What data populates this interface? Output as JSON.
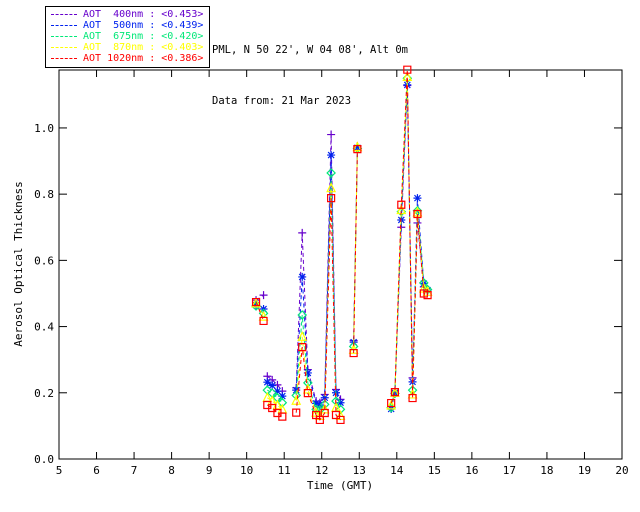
{
  "header": {
    "line1": "PML, N 50 22', W 04 08', Alt 0m",
    "line2": "Data from: 21 Mar 2023"
  },
  "chart_data": {
    "type": "line",
    "title": "",
    "xlabel": "Time (GMT)",
    "ylabel": "Aerosol Optical Thickness",
    "xlim": [
      5,
      20
    ],
    "ylim": [
      0,
      1.175
    ],
    "grid": false,
    "legend_position": "top-left-outside",
    "line_style": "dashed",
    "xticks": [
      5,
      6,
      7,
      8,
      9,
      10,
      11,
      12,
      13,
      14,
      15,
      16,
      17,
      18,
      19,
      20
    ],
    "yticks": [
      0.0,
      0.2,
      0.4,
      0.6,
      0.8,
      1.0
    ],
    "ytick_labels": [
      "0.0",
      "0.2",
      "0.4",
      "0.6",
      "0.8",
      "1.0"
    ],
    "series": [
      {
        "name": "AOT 400nm",
        "legend_label": "AOT  400nm : <0.453>",
        "mean": 0.453,
        "color": "#6600cc",
        "marker": "plus",
        "segments": [
          [
            [
              10.25,
              0.48
            ],
            [
              10.45,
              0.495
            ]
          ],
          [
            [
              10.55,
              0.25
            ],
            [
              10.68,
              0.239
            ],
            [
              10.82,
              0.224
            ],
            [
              10.95,
              0.205
            ]
          ],
          [
            [
              11.32,
              0.215
            ],
            [
              11.48,
              0.683
            ],
            [
              11.63,
              0.27
            ],
            [
              11.85,
              0.175
            ],
            [
              11.95,
              0.17
            ],
            [
              12.08,
              0.195
            ],
            [
              12.25,
              0.98
            ],
            [
              12.38,
              0.21
            ],
            [
              12.5,
              0.18
            ]
          ],
          [
            [
              12.85,
              0.358
            ],
            [
              12.95,
              0.945
            ]
          ],
          [
            [
              13.85,
              0.158
            ],
            [
              13.95,
              0.205
            ],
            [
              14.12,
              0.7
            ],
            [
              14.28,
              1.128
            ],
            [
              14.42,
              0.245
            ],
            [
              14.55,
              0.713
            ],
            [
              14.72,
              0.52
            ],
            [
              14.82,
              0.505
            ]
          ]
        ]
      },
      {
        "name": "AOT 500nm",
        "legend_label": "AOT  500nm : <0.439>",
        "mean": 0.439,
        "color": "#0022ee",
        "marker": "asterisk",
        "segments": [
          [
            [
              10.25,
              0.465
            ],
            [
              10.45,
              0.453
            ]
          ],
          [
            [
              10.55,
              0.232
            ],
            [
              10.68,
              0.222
            ],
            [
              10.82,
              0.205
            ],
            [
              10.95,
              0.19
            ]
          ],
          [
            [
              11.32,
              0.208
            ],
            [
              11.48,
              0.55
            ],
            [
              11.63,
              0.26
            ],
            [
              11.85,
              0.168
            ],
            [
              11.95,
              0.163
            ],
            [
              12.08,
              0.185
            ],
            [
              12.25,
              0.918
            ],
            [
              12.38,
              0.2
            ],
            [
              12.5,
              0.17
            ]
          ],
          [
            [
              12.85,
              0.353
            ],
            [
              12.95,
              0.94
            ]
          ],
          [
            [
              13.85,
              0.151
            ],
            [
              13.95,
              0.2
            ],
            [
              14.12,
              0.722
            ],
            [
              14.28,
              1.13
            ],
            [
              14.42,
              0.233
            ],
            [
              14.55,
              0.788
            ],
            [
              14.72,
              0.53
            ],
            [
              14.82,
              0.51
            ]
          ]
        ]
      },
      {
        "name": "AOT 675nm",
        "legend_label": "AOT  675nm : <0.420>",
        "mean": 0.42,
        "color": "#00e878",
        "marker": "diamond",
        "segments": [
          [
            [
              10.25,
              0.462
            ],
            [
              10.45,
              0.44
            ]
          ],
          [
            [
              10.55,
              0.208
            ],
            [
              10.68,
              0.199
            ],
            [
              10.82,
              0.185
            ],
            [
              10.95,
              0.17
            ]
          ],
          [
            [
              11.32,
              0.192
            ],
            [
              11.48,
              0.435
            ],
            [
              11.63,
              0.23
            ],
            [
              11.85,
              0.15
            ],
            [
              11.95,
              0.148
            ],
            [
              12.08,
              0.165
            ],
            [
              12.25,
              0.864
            ],
            [
              12.38,
              0.175
            ],
            [
              12.5,
              0.15
            ]
          ],
          [
            [
              12.85,
              0.34
            ],
            [
              12.95,
              0.938
            ]
          ],
          [
            [
              13.85,
              0.155
            ],
            [
              13.95,
              0.198
            ],
            [
              14.12,
              0.747
            ],
            [
              14.28,
              1.15
            ],
            [
              14.42,
              0.208
            ],
            [
              14.55,
              0.75
            ],
            [
              14.72,
              0.532
            ],
            [
              14.82,
              0.512
            ]
          ]
        ]
      },
      {
        "name": "AOT 870nm",
        "legend_label": "AOT  870nm : <0.403>",
        "mean": 0.403,
        "color": "#ffff00",
        "marker": "triangle",
        "segments": [
          [
            [
              10.25,
              0.47
            ],
            [
              10.45,
              0.43
            ]
          ],
          [
            [
              10.55,
              0.185
            ],
            [
              10.68,
              0.175
            ],
            [
              10.82,
              0.162
            ],
            [
              10.95,
              0.15
            ]
          ],
          [
            [
              11.32,
              0.176
            ],
            [
              11.48,
              0.369
            ],
            [
              11.63,
              0.21
            ],
            [
              11.85,
              0.14
            ],
            [
              11.95,
              0.13
            ],
            [
              12.08,
              0.15
            ],
            [
              12.25,
              0.818
            ],
            [
              12.38,
              0.155
            ],
            [
              12.5,
              0.13
            ]
          ],
          [
            [
              12.85,
              0.33
            ],
            [
              12.95,
              0.942
            ]
          ],
          [
            [
              13.85,
              0.162
            ],
            [
              13.95,
              0.2
            ],
            [
              14.12,
              0.752
            ],
            [
              14.28,
              1.154
            ],
            [
              14.42,
              0.195
            ],
            [
              14.55,
              0.745
            ],
            [
              14.72,
              0.515
            ],
            [
              14.82,
              0.505
            ]
          ]
        ]
      },
      {
        "name": "AOT 1020nm",
        "legend_label": "AOT 1020nm : <0.386>",
        "mean": 0.386,
        "color": "#ff0000",
        "marker": "square",
        "segments": [
          [
            [
              10.25,
              0.474
            ],
            [
              10.45,
              0.417
            ]
          ],
          [
            [
              10.55,
              0.163
            ],
            [
              10.68,
              0.154
            ],
            [
              10.82,
              0.139
            ],
            [
              10.95,
              0.128
            ]
          ],
          [
            [
              11.32,
              0.14
            ],
            [
              11.48,
              0.338
            ],
            [
              11.63,
              0.199
            ],
            [
              11.85,
              0.133
            ],
            [
              11.95,
              0.118
            ],
            [
              12.08,
              0.139
            ],
            [
              12.25,
              0.788
            ],
            [
              12.38,
              0.133
            ],
            [
              12.5,
              0.118
            ]
          ],
          [
            [
              12.85,
              0.32
            ],
            [
              12.95,
              0.936
            ]
          ],
          [
            [
              13.85,
              0.169
            ],
            [
              13.95,
              0.202
            ],
            [
              14.12,
              0.768
            ],
            [
              14.28,
              1.176
            ],
            [
              14.42,
              0.184
            ],
            [
              14.55,
              0.74
            ],
            [
              14.72,
              0.5
            ],
            [
              14.82,
              0.495
            ]
          ]
        ]
      }
    ]
  }
}
